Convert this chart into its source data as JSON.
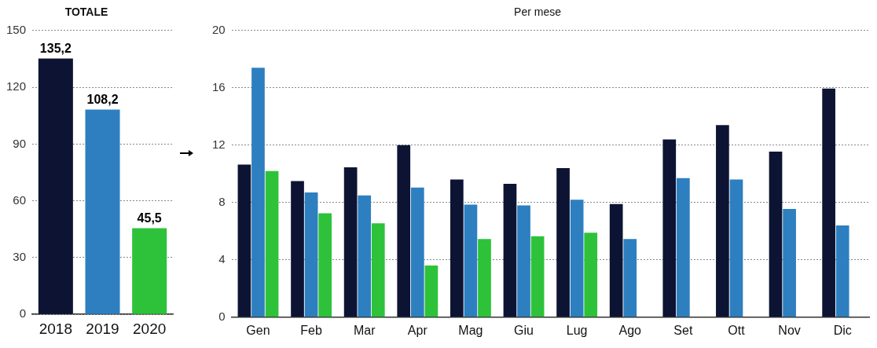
{
  "chart_data": [
    {
      "type": "bar",
      "title": "TOTALE",
      "categories": [
        "2018",
        "2019",
        "2020"
      ],
      "values": [
        135.2,
        108.2,
        45.5
      ],
      "colors": [
        "#0d1433",
        "#2d7fc0",
        "#2ec23a"
      ],
      "value_labels": [
        "135,2",
        "108,2",
        "45,5"
      ],
      "ylim": [
        0,
        150
      ],
      "yticks": [
        0,
        30,
        60,
        90,
        120,
        150
      ],
      "grid": "y",
      "legend": false
    },
    {
      "type": "bar",
      "title": "Per mese",
      "categories": [
        "Gen",
        "Feb",
        "Mar",
        "Apr",
        "Mag",
        "Giu",
        "Lug",
        "Ago",
        "Set",
        "Ott",
        "Nov",
        "Dic"
      ],
      "series": [
        {
          "color": "#0d1433",
          "values": [
            10.65,
            9.5,
            10.45,
            12.0,
            9.6,
            9.3,
            10.4,
            7.9,
            12.4,
            13.4,
            11.55,
            15.95
          ]
        },
        {
          "color": "#2d7fc0",
          "values": [
            17.4,
            8.7,
            8.5,
            9.05,
            7.85,
            7.8,
            8.2,
            5.45,
            9.7,
            9.6,
            7.55,
            6.4
          ]
        },
        {
          "color": "#2ec23a",
          "values": [
            10.2,
            7.25,
            6.55,
            3.6,
            5.45,
            5.65,
            5.9,
            null,
            null,
            null,
            null,
            null
          ]
        }
      ],
      "ylim": [
        0,
        20
      ],
      "yticks": [
        0,
        4,
        8,
        12,
        16,
        20
      ],
      "grid": "y",
      "legend": false
    }
  ]
}
